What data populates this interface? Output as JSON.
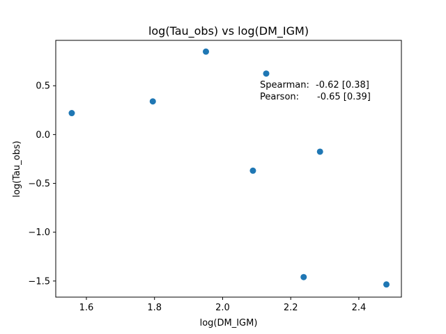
{
  "chart_data": {
    "type": "scatter",
    "title": "log(Tau_obs) vs log(DM_IGM)",
    "xlabel": "log(DM_IGM)",
    "ylabel": "log(Tau_obs)",
    "xlim": [
      1.51,
      2.525
    ],
    "ylim": [
      -1.665,
      0.965
    ],
    "xticks": [
      1.6,
      1.8,
      2.0,
      2.2,
      2.4
    ],
    "xtick_labels": [
      "1.6",
      "1.8",
      "2.0",
      "2.2",
      "2.4"
    ],
    "yticks": [
      -1.5,
      -1.0,
      -0.5,
      0.0,
      0.5
    ],
    "ytick_labels": [
      "−1.5",
      "−1.0",
      "−0.5",
      "0.0",
      "0.5"
    ],
    "grid": false,
    "marker_color": "#1f77b4",
    "points": [
      {
        "x": 1.557,
        "y": 0.22
      },
      {
        "x": 1.795,
        "y": 0.34
      },
      {
        "x": 1.951,
        "y": 0.85
      },
      {
        "x": 2.089,
        "y": -0.37
      },
      {
        "x": 2.128,
        "y": 0.625
      },
      {
        "x": 2.238,
        "y": -1.46
      },
      {
        "x": 2.286,
        "y": -0.175
      },
      {
        "x": 2.481,
        "y": -1.535
      }
    ],
    "annotations": [
      {
        "label": "Spearman:",
        "value": "-0.62 [0.38]"
      },
      {
        "label": "Pearson:",
        "value": "-0.65 [0.39]"
      }
    ]
  }
}
